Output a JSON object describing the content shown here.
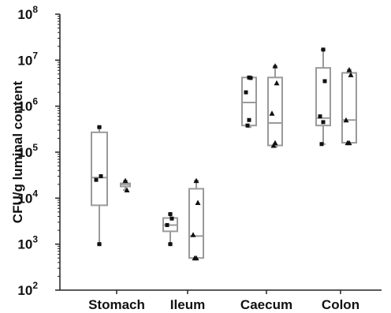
{
  "chart_data": {
    "type": "box",
    "ylabel": "CFU/g luminal content",
    "yscale": "log",
    "ylim": [
      100,
      100000000
    ],
    "y_ticks": [
      {
        "base": "10",
        "exp": "2"
      },
      {
        "base": "10",
        "exp": "3"
      },
      {
        "base": "10",
        "exp": "4"
      },
      {
        "base": "10",
        "exp": "5"
      },
      {
        "base": "10",
        "exp": "6"
      },
      {
        "base": "10",
        "exp": "7"
      },
      {
        "base": "10",
        "exp": "8"
      }
    ],
    "categories": [
      "Stomach",
      "Ileum",
      "Caecum",
      "Colon"
    ],
    "box_color": "#9a9a9a",
    "marker_color": "#111111",
    "series": [
      {
        "marker": "square",
        "boxes": [
          {
            "category": "Stomach",
            "min": 1000,
            "q1": 7000,
            "median": 28000,
            "q3": 270000,
            "max": 350000,
            "points": [
              350000,
              30000,
              25000,
              1000
            ]
          },
          {
            "category": "Ileum",
            "min": 1000,
            "q1": 1900,
            "median": 2600,
            "q3": 3700,
            "max": 4500,
            "points": [
              4500,
              3600,
              2600,
              1000
            ]
          },
          {
            "category": "Caecum",
            "min": 350000,
            "q1": 380000,
            "median": 1200000,
            "q3": 4200000,
            "max": 4300000,
            "points": [
              4200000,
              4100000,
              2000000,
              500000,
              380000
            ]
          },
          {
            "category": "Colon",
            "min": 150000,
            "q1": 380000,
            "median": 550000,
            "q3": 6800000,
            "max": 17000000,
            "points": [
              17000000,
              3500000,
              600000,
              450000,
              150000
            ]
          }
        ]
      },
      {
        "marker": "triangle",
        "boxes": [
          {
            "category": "Stomach",
            "min": 15000,
            "q1": 18000,
            "median": 20000,
            "q3": 21000,
            "max": 24000,
            "points": [
              24000,
              15000
            ]
          },
          {
            "category": "Ileum",
            "min": 500,
            "q1": 500,
            "median": 1500,
            "q3": 16000,
            "max": 24000,
            "points": [
              24000,
              8000,
              1600,
              500,
              500
            ]
          },
          {
            "category": "Caecum",
            "min": 130000,
            "q1": 140000,
            "median": 430000,
            "q3": 4200000,
            "max": 7500000,
            "points": [
              7500000,
              3200000,
              700000,
              160000,
              140000
            ]
          },
          {
            "category": "Colon",
            "min": 160000,
            "q1": 160000,
            "median": 500000,
            "q3": 5300000,
            "max": 6200000,
            "points": [
              6200000,
              4800000,
              500000,
              160000,
              160000
            ]
          }
        ]
      }
    ]
  }
}
